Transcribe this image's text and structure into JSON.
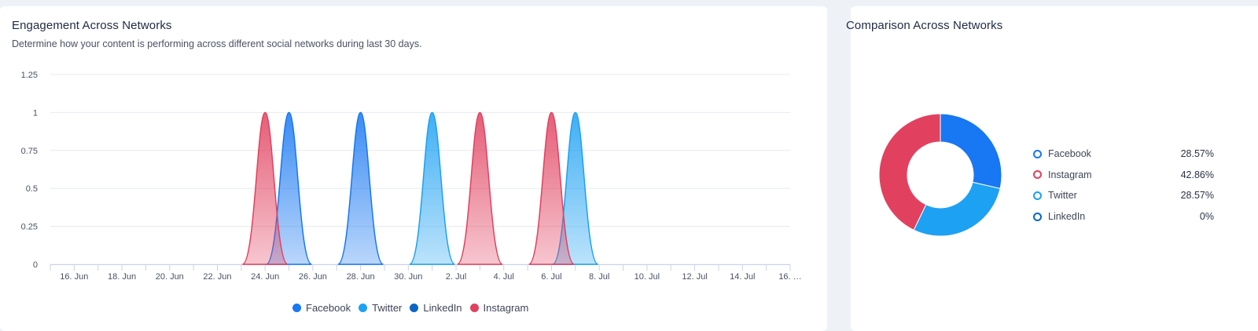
{
  "left_card": {
    "title": "Engagement Across Networks",
    "subtitle": "Determine how your content is performing across different social networks during last 30 days."
  },
  "right_card": {
    "title": "Comparison Across Networks"
  },
  "colors": {
    "Facebook": "#1877f2",
    "Twitter": "#1da1f2",
    "LinkedIn": "#0a66c2",
    "Instagram": "#e1415f"
  },
  "chart_data": [
    {
      "type": "area",
      "x_tick_labels": [
        "16. Jun",
        "18. Jun",
        "20. Jun",
        "22. Jun",
        "24. Jun",
        "26. Jun",
        "28. Jun",
        "30. Jun",
        "2. Jul",
        "4. Jul",
        "6. Jul",
        "8. Jul",
        "10. Jul",
        "12. Jul",
        "14. Jul",
        "16. …"
      ],
      "y_tick_labels": [
        "0",
        "0.25",
        "0.5",
        "0.75",
        "1",
        "1.25"
      ],
      "ylim": [
        0,
        1.25
      ],
      "x_start": "15. Jun",
      "x_end": "16. Jul",
      "grid": true,
      "legend": "bottom",
      "series": [
        {
          "name": "Facebook",
          "peaks": [
            {
              "x": "25. Jun",
              "y": 1
            },
            {
              "x": "28. Jun",
              "y": 1
            }
          ]
        },
        {
          "name": "Twitter",
          "peaks": [
            {
              "x": "1. Jul",
              "y": 1
            },
            {
              "x": "7. Jul",
              "y": 1
            }
          ]
        },
        {
          "name": "LinkedIn",
          "peaks": []
        },
        {
          "name": "Instagram",
          "peaks": [
            {
              "x": "24. Jun",
              "y": 1
            },
            {
              "x": "3. Jul",
              "y": 1
            },
            {
              "x": "6. Jul",
              "y": 1
            }
          ]
        }
      ]
    },
    {
      "type": "pie",
      "donut": true,
      "slices": [
        {
          "name": "Facebook",
          "value": 28.57,
          "label": "28.57%"
        },
        {
          "name": "Twitter",
          "value": 28.57,
          "label": "28.57%"
        },
        {
          "name": "Instagram",
          "value": 42.86,
          "label": "42.86%"
        },
        {
          "name": "LinkedIn",
          "value": 0,
          "label": "0%"
        }
      ],
      "legend_order": [
        "Facebook",
        "Instagram",
        "Twitter",
        "LinkedIn"
      ],
      "legend": "right"
    }
  ]
}
